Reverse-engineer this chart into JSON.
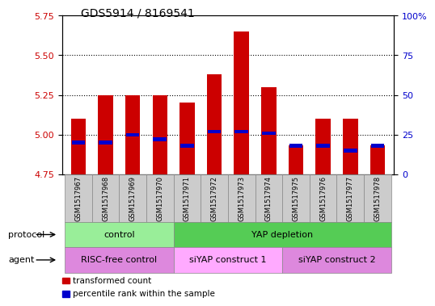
{
  "title": "GDS5914 / 8169541",
  "samples": [
    "GSM1517967",
    "GSM1517968",
    "GSM1517969",
    "GSM1517970",
    "GSM1517971",
    "GSM1517972",
    "GSM1517973",
    "GSM1517974",
    "GSM1517975",
    "GSM1517976",
    "GSM1517977",
    "GSM1517978"
  ],
  "bar_bottom": 4.75,
  "bar_tops": [
    5.1,
    5.25,
    5.25,
    5.25,
    5.2,
    5.38,
    5.65,
    5.3,
    4.93,
    5.1,
    5.1,
    4.93
  ],
  "blue_values": [
    4.95,
    4.95,
    5.0,
    4.97,
    4.93,
    5.02,
    5.02,
    5.01,
    4.93,
    4.93,
    4.9,
    4.93
  ],
  "ylim_left": [
    4.75,
    5.75
  ],
  "yticks_left": [
    4.75,
    5.0,
    5.25,
    5.5,
    5.75
  ],
  "ylim_right": [
    0,
    100
  ],
  "yticks_right": [
    0,
    25,
    50,
    75,
    100
  ],
  "ytick_labels_right": [
    "0",
    "25",
    "50",
    "75",
    "100%"
  ],
  "bar_color": "#cc0000",
  "blue_color": "#0000cc",
  "protocol_groups": [
    {
      "label": "control",
      "start": 0,
      "end": 3,
      "color": "#99ee99"
    },
    {
      "label": "YAP depletion",
      "start": 4,
      "end": 11,
      "color": "#55cc55"
    }
  ],
  "agent_groups": [
    {
      "label": "RISC-free control",
      "start": 0,
      "end": 3,
      "color": "#dd88dd"
    },
    {
      "label": "siYAP construct 1",
      "start": 4,
      "end": 7,
      "color": "#ffaaff"
    },
    {
      "label": "siYAP construct 2",
      "start": 8,
      "end": 11,
      "color": "#dd88dd"
    }
  ],
  "legend_items": [
    {
      "label": "transformed count",
      "color": "#cc0000"
    },
    {
      "label": "percentile rank within the sample",
      "color": "#0000cc"
    }
  ],
  "label_protocol": "protocol",
  "label_agent": "agent",
  "tick_label_color_left": "#cc0000",
  "tick_label_color_right": "#0000cc",
  "bg_color": "#ffffff",
  "plot_bg_color": "#ffffff",
  "xlabel_bg_color": "#cccccc"
}
